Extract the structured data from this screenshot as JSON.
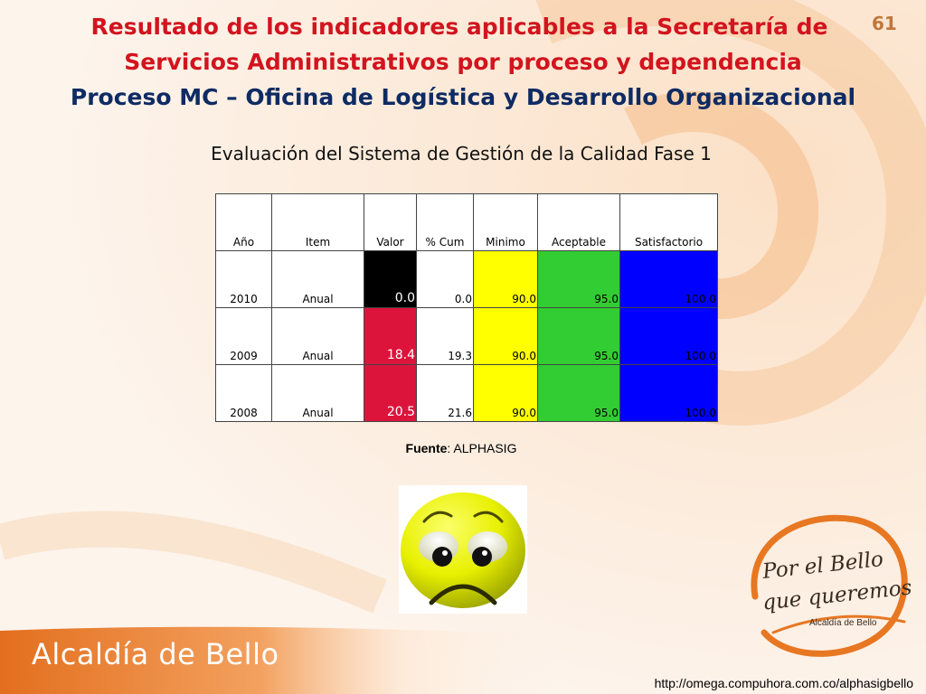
{
  "page_number": "61",
  "title": {
    "line1": "Resultado de los indicadores aplicables a la Secretaría de",
    "line2": "Servicios Administrativos por proceso y dependencia",
    "line3": "Proceso MC – Oficina de Logística y Desarrollo Organizacional"
  },
  "subtitle": "Evaluación del Sistema de Gestión de la Calidad Fase 1",
  "table": {
    "headers": [
      "Año",
      "Item",
      "Valor",
      "% Cum",
      "Minimo",
      "Aceptable",
      "Satisfactorio"
    ],
    "rows": [
      {
        "anio": "2010",
        "item": "Anual",
        "valor": "0.0",
        "cum": "0.0",
        "minimo": "90.0",
        "aceptable": "95.0",
        "satisfactorio": "100.0",
        "valor_color": "#000000",
        "valor_text_color": "#ffffff"
      },
      {
        "anio": "2009",
        "item": "Anual",
        "valor": "18.4",
        "cum": "19.3",
        "minimo": "90.0",
        "aceptable": "95.0",
        "satisfactorio": "100.0",
        "valor_color": "#dc143c",
        "valor_text_color": "#ffffff"
      },
      {
        "anio": "2008",
        "item": "Anual",
        "valor": "20.5",
        "cum": "21.6",
        "minimo": "90.0",
        "aceptable": "95.0",
        "satisfactorio": "100.0",
        "valor_color": "#dc143c",
        "valor_text_color": "#ffffff"
      }
    ],
    "colors": {
      "minimo": "#ffff00",
      "aceptable": "#32cd32",
      "satisfactorio": "#0000ff"
    }
  },
  "source": {
    "label": "Fuente",
    "value": ": ALPHASIG"
  },
  "smiley_icon": "sad-face-icon",
  "footer": {
    "brand": "Alcaldía de Bello",
    "url": "http://omega.compuhora.com.co/alphasigbello"
  },
  "logo": {
    "line1": "Por el Bello",
    "line2": "que queremos",
    "line3": "Alcaldía de Bello"
  },
  "palette": {
    "title_red": "#d2141e",
    "title_blue": "#0e2b63",
    "orange": "#e87722"
  }
}
